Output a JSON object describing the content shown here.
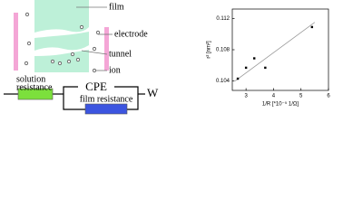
{
  "diagram": {
    "labels": {
      "film": "film",
      "electrode": "electrode",
      "tunnel": "tunnel",
      "ion": "ion"
    },
    "circuit": {
      "solution": [
        "solution",
        "resistance"
      ],
      "cpe": "CPE",
      "film_resistance": "film resistance",
      "warburg": "W"
    }
  },
  "chart_data": {
    "type": "scatter",
    "x_label": "1/R [*10⁻⁵ 1/Ω]",
    "y_label": "r² [nm²]",
    "x": [
      2.7,
      3.0,
      3.3,
      3.7,
      5.4
    ],
    "values": [
      0.1043,
      0.1057,
      0.1069,
      0.1057,
      0.1109
    ],
    "color": "#000000",
    "fit_line": {
      "x": [
        2.6,
        5.5
      ],
      "values": [
        0.104,
        0.1115
      ],
      "color": "#999999"
    },
    "xlim": [
      2.5,
      6
    ],
    "xticks": [
      3,
      4,
      5,
      6
    ],
    "ylim": [
      0.1028,
      0.1132
    ],
    "yticks": [
      0.104,
      0.108,
      0.112
    ]
  }
}
